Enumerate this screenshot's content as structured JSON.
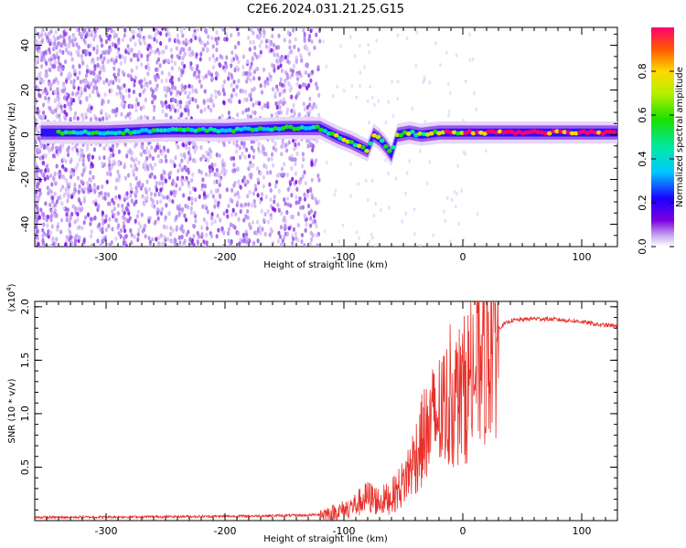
{
  "title": "C2E6.2024.031.21.25.G15",
  "chart_data": [
    {
      "type": "heatmap",
      "xlabel": "Height of straight line (km)",
      "ylabel": "Frequency (Hz)",
      "xlim": [
        -360,
        130
      ],
      "ylim": [
        -50,
        48
      ],
      "xticks": [
        -300,
        -200,
        -100,
        0,
        100
      ],
      "yticks": [
        40,
        20,
        0,
        -20,
        -40
      ],
      "colorbar": {
        "label": "Normalized spectral amplitude",
        "range": [
          0.0,
          1.0
        ],
        "ticks": [
          "0.0",
          "0.2",
          "0.4",
          "0.6",
          "0.8"
        ]
      },
      "ridge": {
        "x": [
          -355,
          -300,
          -250,
          -200,
          -150,
          -120,
          -105,
          -95,
          -80,
          -75,
          -70,
          -65,
          -60,
          -55,
          -45,
          -35,
          -20,
          -10,
          0,
          20,
          60,
          100,
          130
        ],
        "y": [
          1,
          1,
          2,
          2,
          3,
          3,
          -1,
          -3,
          -7,
          0,
          -2,
          -5,
          -9,
          0,
          1,
          0,
          1,
          1,
          1,
          1,
          1,
          1,
          1
        ]
      }
    },
    {
      "type": "line",
      "xlabel": "Height of straight line (km)",
      "ylabel": "SNR (10 * v/v)",
      "ylabel_unit": "(x10",
      "ylabel_unit_exp": "4",
      "ylabel_unit_close": ")",
      "xlim": [
        -360,
        130
      ],
      "ylim": [
        0,
        2.05
      ],
      "xticks": [
        -300,
        -200,
        -100,
        0,
        100
      ],
      "yticks": [
        "0.5",
        "1.0",
        "1.5",
        "2.0"
      ],
      "color": "#e8302a",
      "envelope": {
        "x": [
          -360,
          -200,
          -130,
          -110,
          -100,
          -90,
          -80,
          -70,
          -60,
          -50,
          -40,
          -30,
          -20,
          -10,
          0,
          10,
          20,
          30,
          40,
          60,
          80,
          100,
          115,
          130
        ],
        "y": [
          0.03,
          0.04,
          0.05,
          0.07,
          0.1,
          0.15,
          0.22,
          0.18,
          0.22,
          0.35,
          0.6,
          0.85,
          1.0,
          1.1,
          1.2,
          1.4,
          1.65,
          1.8,
          1.87,
          1.89,
          1.88,
          1.86,
          1.83,
          1.82
        ]
      }
    }
  ]
}
